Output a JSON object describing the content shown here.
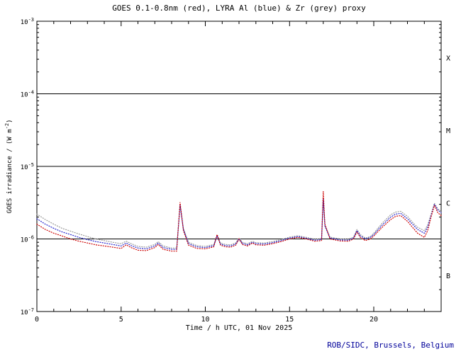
{
  "page": {
    "footer": "ROB/SIDC, Brussels, Belgium"
  },
  "chart_data": {
    "type": "line",
    "title": "GOES 0.1-0.8nm (red), LYRA Al (blue) & Zr (grey) proxy",
    "xlabel": "Time / h UTC, 01 Nov 2025",
    "ylabel": "GOES irradiance / (W m-2)",
    "ylabel_parts": {
      "pre": "GOES irradiance / (W m",
      "sup": "-2",
      "post": ")"
    },
    "x_range": [
      0,
      24
    ],
    "x_major_ticks": [
      0,
      5,
      10,
      15,
      20
    ],
    "x_minor_step": 1,
    "y_scale": "log",
    "y_range_exponents": [
      -7,
      -3
    ],
    "y_tick_exponents": [
      -3,
      -4,
      -5,
      -6,
      -7
    ],
    "hlines": [
      0.0001,
      1e-05,
      1e-06
    ],
    "class_labels": [
      {
        "label": "X",
        "log_center": -3.5
      },
      {
        "label": "M",
        "log_center": -4.5
      },
      {
        "label": "C",
        "log_center": -5.5
      },
      {
        "label": "B",
        "log_center": -6.5
      }
    ],
    "grid": false,
    "legend_position": "in-title",
    "x": [
      0,
      0.5,
      1,
      1.5,
      2,
      2.5,
      3,
      3.5,
      4,
      4.5,
      5,
      5.3,
      5.6,
      6,
      6.5,
      7,
      7.2,
      7.5,
      8,
      8.3,
      8.5,
      8.7,
      9,
      9.5,
      10,
      10.5,
      10.7,
      10.9,
      11.2,
      11.5,
      11.8,
      12,
      12.2,
      12.5,
      12.8,
      13,
      13.5,
      14,
      14.5,
      15,
      15.5,
      16,
      16.5,
      16.9,
      17,
      17.1,
      17.4,
      17.7,
      18,
      18.5,
      18.8,
      19,
      19.2,
      19.5,
      19.8,
      20,
      20.5,
      21,
      21.3,
      21.6,
      22,
      22.3,
      22.6,
      23,
      23.2,
      23.4,
      23.6,
      23.8,
      24
    ],
    "series": [
      {
        "id": "goes-red",
        "name": "GOES 0.1-0.8nm",
        "color": "#cc0000",
        "values": [
          1.6e-06,
          1.35e-06,
          1.2e-06,
          1.1e-06,
          1e-06,
          9.3e-07,
          8.8e-07,
          8.3e-07,
          8e-07,
          7.7e-07,
          7.4e-07,
          8.3e-07,
          7.6e-07,
          7e-07,
          6.9e-07,
          7.6e-07,
          8.4e-07,
          7.2e-07,
          6.8e-07,
          6.8e-07,
          3.2e-06,
          1.3e-06,
          8.2e-07,
          7.4e-07,
          7.3e-07,
          7.8e-07,
          1.15e-06,
          8.2e-07,
          7.8e-07,
          7.7e-07,
          8.2e-07,
          1e-06,
          8.4e-07,
          8e-07,
          8.8e-07,
          8.3e-07,
          8.2e-07,
          8.6e-07,
          9.2e-07,
          1e-06,
          1.05e-06,
          1e-06,
          9.3e-07,
          9.5e-07,
          4.5e-06,
          1.6e-06,
          1e-06,
          9.7e-07,
          9.4e-07,
          9.3e-07,
          1e-06,
          1.25e-06,
          1.05e-06,
          9.5e-07,
          1e-06,
          1.1e-06,
          1.45e-06,
          1.85e-06,
          2.05e-06,
          2.1e-06,
          1.75e-06,
          1.45e-06,
          1.2e-06,
          1.05e-06,
          1.3e-06,
          2e-06,
          2.9e-06,
          2.3e-06,
          2.1e-06
        ]
      },
      {
        "id": "lyra-al-blue",
        "name": "LYRA Al proxy",
        "color": "#2222cc",
        "values": [
          1.9e-06,
          1.6e-06,
          1.4e-06,
          1.25e-06,
          1.15e-06,
          1.05e-06,
          9.8e-07,
          9.2e-07,
          8.8e-07,
          8.4e-07,
          8e-07,
          8.8e-07,
          8.1e-07,
          7.5e-07,
          7.3e-07,
          8e-07,
          8.8e-07,
          7.6e-07,
          7.2e-07,
          7.2e-07,
          2.9e-06,
          1.35e-06,
          8.6e-07,
          7.8e-07,
          7.6e-07,
          8.1e-07,
          1.1e-06,
          8.5e-07,
          8.1e-07,
          8e-07,
          8.5e-07,
          1e-06,
          8.7e-07,
          8.3e-07,
          9e-07,
          8.6e-07,
          8.5e-07,
          8.9e-07,
          9.5e-07,
          1.03e-06,
          1.08e-06,
          1.02e-06,
          9.6e-07,
          9.8e-07,
          3.6e-06,
          1.5e-06,
          1.03e-06,
          1e-06,
          9.7e-07,
          9.6e-07,
          1.03e-06,
          1.3e-06,
          1.1e-06,
          1e-06,
          1.05e-06,
          1.15e-06,
          1.55e-06,
          2e-06,
          2.2e-06,
          2.25e-06,
          1.9e-06,
          1.6e-06,
          1.35e-06,
          1.2e-06,
          1.45e-06,
          2.1e-06,
          3e-06,
          2.5e-06,
          2.3e-06
        ]
      },
      {
        "id": "lyra-zr-grey",
        "name": "LYRA Zr proxy",
        "color": "#999999",
        "values": [
          2.2e-06,
          1.85e-06,
          1.6e-06,
          1.4e-06,
          1.28e-06,
          1.17e-06,
          1.08e-06,
          1e-06,
          9.5e-07,
          9e-07,
          8.6e-07,
          9.3e-07,
          8.6e-07,
          7.9e-07,
          7.7e-07,
          8.4e-07,
          9.2e-07,
          8e-07,
          7.5e-07,
          7.5e-07,
          3e-06,
          1.4e-06,
          9e-07,
          8.1e-07,
          7.9e-07,
          8.4e-07,
          1.15e-06,
          8.8e-07,
          8.4e-07,
          8.3e-07,
          8.8e-07,
          1.03e-06,
          9e-07,
          8.6e-07,
          9.3e-07,
          8.9e-07,
          8.8e-07,
          9.2e-07,
          9.8e-07,
          1.06e-06,
          1.11e-06,
          1.05e-06,
          9.9e-07,
          1.01e-06,
          3.4e-06,
          1.55e-06,
          1.06e-06,
          1.03e-06,
          1e-06,
          9.9e-07,
          1.06e-06,
          1.35e-06,
          1.15e-06,
          1.03e-06,
          1.08e-06,
          1.2e-06,
          1.65e-06,
          2.15e-06,
          2.35e-06,
          2.4e-06,
          2.05e-06,
          1.7e-06,
          1.45e-06,
          1.3e-06,
          1.55e-06,
          2.2e-06,
          3.1e-06,
          2.6e-06,
          2.4e-06
        ]
      }
    ]
  }
}
